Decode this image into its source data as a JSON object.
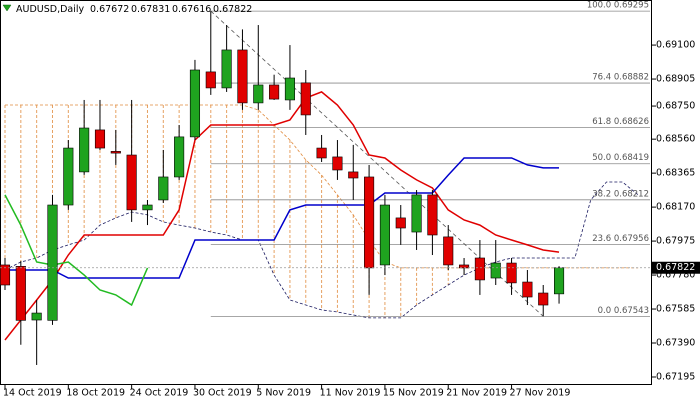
{
  "chart_data": {
    "type": "candlestick",
    "title": "AUDUSD,Daily",
    "categories": [
      "14 Oct 2019",
      null,
      null,
      null,
      "18 Oct 2019",
      null,
      null,
      null,
      "24 Oct 2019",
      null,
      null,
      null,
      "30 Oct 2019",
      null,
      null,
      null,
      "5 Nov 2019",
      null,
      null,
      null,
      "11 Nov 2019",
      null,
      null,
      null,
      "15 Nov 2019",
      null,
      null,
      null,
      "21 Nov 2019",
      null,
      null,
      null,
      "27 Nov 2019",
      null,
      null,
      null,
      null,
      null,
      null,
      null,
      null
    ],
    "open": [
      0.67838,
      0.6783,
      0.67522,
      0.6752,
      0.68182,
      0.68372,
      0.68613,
      0.6849,
      0.68469,
      0.68154,
      0.68211,
      0.68343,
      0.68573,
      0.68946,
      0.68854,
      0.69072,
      0.68768,
      0.68871,
      0.68785,
      0.68883,
      0.68509,
      0.68458,
      0.68372,
      0.68343,
      0.67838,
      0.68108,
      0.68027,
      0.6824,
      0.67999,
      0.67838,
      0.67878,
      0.67763,
      0.67849,
      0.6774,
      0.67677,
      0.67672,
      null,
      null,
      null,
      null,
      null
    ],
    "high": [
      0.67878,
      0.6786,
      0.67637,
      0.6824,
      0.68555,
      0.68785,
      0.68785,
      0.68613,
      0.68785,
      0.68211,
      0.68498,
      0.68641,
      0.69015,
      0.69295,
      0.69215,
      0.6919,
      0.69215,
      0.6893,
      0.691,
      0.68957,
      0.68584,
      0.68555,
      0.68527,
      0.68412,
      0.6824,
      0.68182,
      0.68268,
      0.68268,
      0.68067,
      0.67878,
      0.67981,
      0.67981,
      0.67878,
      0.67809,
      0.67723,
      0.67831,
      null,
      null,
      null,
      null,
      null
    ],
    "low": [
      0.67694,
      0.6738,
      0.67264,
      0.67494,
      0.68154,
      0.68355,
      0.68498,
      0.68412,
      0.68085,
      0.68067,
      0.68194,
      0.68326,
      0.68555,
      0.68814,
      0.68831,
      0.68728,
      0.68728,
      0.68785,
      0.68728,
      0.68584,
      0.68429,
      0.68326,
      0.68211,
      0.67666,
      0.6778,
      0.67953,
      0.67924,
      0.67895,
      0.67809,
      0.6778,
      0.67666,
      0.67723,
      0.67666,
      0.67608,
      0.67543,
      0.67616,
      null,
      null,
      null,
      null,
      null
    ],
    "close": [
      0.67723,
      0.6752,
      0.67562,
      0.68182,
      0.68509,
      0.68624,
      0.68509,
      0.6848,
      0.68154,
      0.68182,
      0.68343,
      0.68573,
      0.68957,
      0.68854,
      0.69072,
      0.68768,
      0.68871,
      0.6879,
      0.68911,
      0.68699,
      0.68452,
      0.68383,
      0.68337,
      0.67821,
      0.68182,
      0.6805,
      0.6824,
      0.6801,
      0.67838,
      0.67821,
      0.67752,
      0.67849,
      0.67735,
      0.67654,
      0.67608,
      0.67822,
      null,
      null,
      null,
      null,
      null
    ],
    "up_color": "#1fa31f",
    "down_color": "#e00000",
    "lines": [
      {
        "color": "#e00000",
        "values": [
          0.67407,
          0.67522,
          0.67637,
          0.67752,
          0.67895,
          0.6801,
          0.6801,
          0.6801,
          0.6801,
          0.6801,
          0.6801,
          0.68154,
          0.68555,
          0.68641,
          0.68641,
          0.68641,
          0.68641,
          0.68641,
          0.6867,
          0.68796,
          0.68831,
          0.68756,
          0.68641,
          0.68469,
          0.68452,
          0.68383,
          0.68326,
          0.6828,
          0.68154,
          0.68096,
          0.68067,
          0.6801,
          0.67981,
          0.67953,
          0.67924,
          0.67912,
          null,
          null,
          null,
          null,
          null
        ]
      },
      {
        "color": "#0000cc",
        "values": [
          0.67809,
          0.67809,
          0.67809,
          0.67809,
          0.67763,
          0.67763,
          0.67763,
          0.67763,
          0.67763,
          0.67763,
          0.67763,
          0.67763,
          0.67981,
          0.67981,
          0.67981,
          0.67981,
          0.67981,
          0.67981,
          0.68154,
          0.68182,
          0.68182,
          0.68182,
          0.68182,
          0.68182,
          0.68251,
          0.68251,
          0.68251,
          0.68251,
          0.68354,
          0.68452,
          0.68452,
          0.68452,
          0.68452,
          0.68412,
          0.68395,
          0.68395,
          null,
          null,
          null,
          null,
          null
        ]
      },
      {
        "color": "#22bb22",
        "values": [
          0.6824,
          0.68067,
          0.67855,
          0.67838,
          0.67855,
          0.6778,
          0.67694,
          0.67666,
          0.67608,
          0.67821,
          null,
          null,
          null,
          null,
          null,
          null,
          null,
          null,
          null,
          null,
          null,
          null,
          null,
          null,
          null,
          null,
          null,
          null,
          null,
          null,
          null,
          null,
          null,
          null,
          null,
          null,
          null,
          null,
          null,
          null,
          null
        ]
      }
    ],
    "cloud": {
      "a_color": "#1a1a60",
      "b_color": "#e08a3c",
      "a": [
        0.67809,
        0.67855,
        0.67878,
        0.67924,
        0.67953,
        0.67981,
        0.68067,
        0.68108,
        0.68142,
        0.68125,
        0.68085,
        0.68067,
        0.6805,
        0.68027,
        0.6801,
        0.67981,
        0.67981,
        0.6778,
        0.67637,
        0.67608,
        0.6758,
        0.67568,
        0.67551,
        0.67534,
        0.67534,
        0.67534,
        0.67608,
        0.67666,
        0.67723,
        0.6778,
        0.67821,
        0.67855,
        0.67878,
        0.67878,
        0.67878,
        0.67878,
        0.67878,
        0.68211,
        0.68314,
        0.68314,
        0.6824
      ],
      "b": [
        0.68756,
        0.68756,
        0.68756,
        0.68756,
        0.68756,
        0.68756,
        0.68756,
        0.68756,
        0.68756,
        0.68756,
        0.68756,
        0.68756,
        0.68756,
        0.68756,
        0.68756,
        0.68756,
        0.68728,
        0.68641,
        0.68555,
        0.68441,
        0.68354,
        0.6824,
        0.68125,
        0.67981,
        0.67855,
        0.67821,
        0.67821,
        0.67821,
        0.67821,
        0.67821,
        0.67821,
        0.67821,
        0.67821,
        0.67821,
        0.67821,
        0.67821,
        0.67821,
        0.67821,
        0.67821,
        0.67821,
        0.67821
      ]
    },
    "fibonacci": {
      "color": "#8a8a8a",
      "levels": [
        0.69295,
        0.68882,
        0.68626,
        0.68419,
        0.68212,
        0.67956,
        0.67543
      ],
      "value_labels": [
        "100.0 0.69295",
        "76.4 0.68882",
        "61.8 0.68626",
        "50.0 0.68419",
        "38.2 0.68212",
        "23.6 0.67956",
        "0.0 0.67543"
      ]
    },
    "ylim": [
      0.67149,
      0.6933
    ],
    "yticks": [
      {
        "value": 0.691,
        "label": "0.69100"
      },
      {
        "value": 0.68905,
        "label": "0.68905"
      },
      {
        "value": 0.6875,
        "label": "0.68750"
      },
      {
        "value": 0.6856,
        "label": "0.68560"
      },
      {
        "value": 0.68365,
        "label": "0.68365"
      },
      {
        "value": 0.6817,
        "label": "0.68170"
      },
      {
        "value": 0.67975,
        "label": "0.67975"
      },
      {
        "value": 0.6778,
        "label": "0.67780"
      },
      {
        "value": 0.67585,
        "label": "0.67585"
      },
      {
        "value": 0.6739,
        "label": "0.67390"
      },
      {
        "value": 0.67195,
        "label": "0.67195"
      }
    ],
    "grid": false
  }
}
